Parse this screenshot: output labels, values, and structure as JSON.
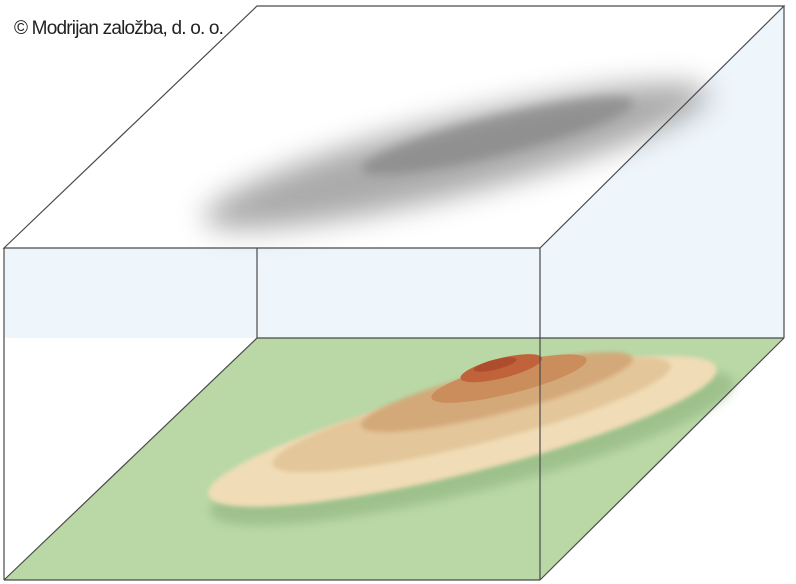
{
  "copyright": "© Modrijan založba, d. o. o.",
  "colors": {
    "background": "#ffffff",
    "box_side_panel": "#eef5fb",
    "box_edge": "#4a4a4a",
    "top_plane": "#ffffff",
    "ground_plane": "#b9d8a6",
    "shadow_projection": "#8f8f8f",
    "hill_outer": "#f0dcb6",
    "hill_mid": "#dcb88a",
    "hill_inner": "#c9966a",
    "hill_peak": "#c0623a"
  }
}
